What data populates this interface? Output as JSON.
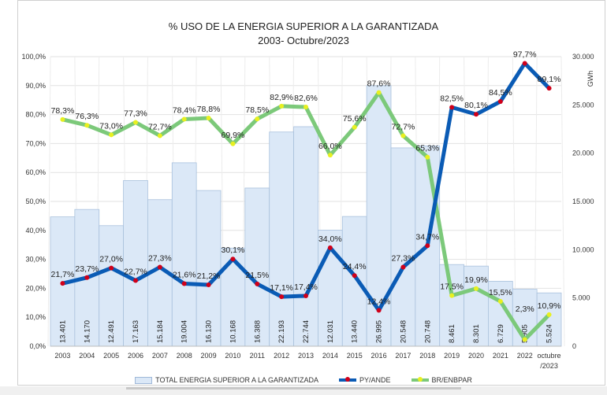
{
  "chart_data": {
    "type": "bar+line",
    "title": "% USO DE LA ENERGIA SUPERIOR A LA GARANTIZADA",
    "subtitle": "2003- Octubre/2023",
    "categories": [
      "2003",
      "2004",
      "2005",
      "2006",
      "2007",
      "2008",
      "2009",
      "2010",
      "2011",
      "2012",
      "2013",
      "2014",
      "2015",
      "2016",
      "2017",
      "2018",
      "2019",
      "2020",
      "2021",
      "2022",
      "octubre /2023"
    ],
    "y_left": {
      "range": [
        0,
        100
      ],
      "ticks": [
        "0,0%",
        "10,0%",
        "20,0%",
        "30,0%",
        "40,0%",
        "50,0%",
        "60,0%",
        "70,0%",
        "80,0%",
        "90,0%",
        "100,0%"
      ]
    },
    "y_right": {
      "label": "GWh",
      "range": [
        0,
        30000
      ],
      "ticks": [
        "0",
        "5.000",
        "10.000",
        "15.000",
        "20.000",
        "25.000",
        "30.000"
      ]
    },
    "grid": true,
    "legend_position": "bottom",
    "series": [
      {
        "name": "TOTAL ENERGIA SUPERIOR A LA GARANTIZADA",
        "type": "bar",
        "axis": "right",
        "color": "#dbe8f7",
        "values": [
          13401,
          14170,
          12491,
          17163,
          15184,
          19004,
          16130,
          10168,
          16388,
          22193,
          22744,
          12031,
          13440,
          26995,
          20548,
          20748,
          8461,
          8301,
          6729,
          5905,
          5524
        ],
        "labels": [
          "13.401",
          "14.170",
          "12.491",
          "17.163",
          "15.184",
          "19.004",
          "16.130",
          "10.168",
          "16.388",
          "22.193",
          "22.744",
          "12.031",
          "13.440",
          "26.995",
          "20.548",
          "20.748",
          "8.461",
          "8.301",
          "6.729",
          "5.905",
          "5.524"
        ]
      },
      {
        "name": "PY/ANDE",
        "type": "line",
        "axis": "left",
        "color": "#0a5bb5",
        "marker": "#d0001a",
        "values": [
          21.7,
          23.7,
          27.0,
          22.7,
          27.3,
          21.6,
          21.2,
          30.1,
          21.5,
          17.1,
          17.4,
          34.0,
          24.4,
          12.4,
          27.3,
          34.7,
          82.5,
          80.1,
          84.5,
          97.7,
          89.1
        ],
        "labels": [
          "21,7%",
          "23,7%",
          "27,0%",
          "22,7%",
          "27,3%",
          "21,6%",
          "21,2%",
          "30,1%",
          "21,5%",
          "17,1%",
          "17,4%",
          "34,0%",
          "24,4%",
          "12,4%",
          "27,3%",
          "34,7%",
          "82,5%",
          "80,1%",
          "84,5%",
          "97,7%",
          "89,1%"
        ]
      },
      {
        "name": "BR/ENBPAR",
        "type": "line",
        "axis": "left",
        "color": "#7cc97a",
        "marker": "#e8f020",
        "values": [
          78.3,
          76.3,
          73.0,
          77.3,
          72.7,
          78.4,
          78.8,
          69.9,
          78.5,
          82.9,
          82.6,
          66.0,
          75.6,
          87.6,
          72.7,
          65.3,
          17.5,
          19.9,
          15.5,
          2.3,
          10.9
        ],
        "labels": [
          "78,3%",
          "76,3%",
          "73,0%",
          "77,3%",
          "72,7%",
          "78,4%",
          "78,8%",
          "69,9%",
          "78,5%",
          "82,9%",
          "82,6%",
          "66,0%",
          "75,6%",
          "87,6%",
          "72,7%",
          "65,3%",
          "17,5%",
          "19,9%",
          "15,5%",
          "2,3%",
          "10,9%"
        ]
      }
    ]
  }
}
